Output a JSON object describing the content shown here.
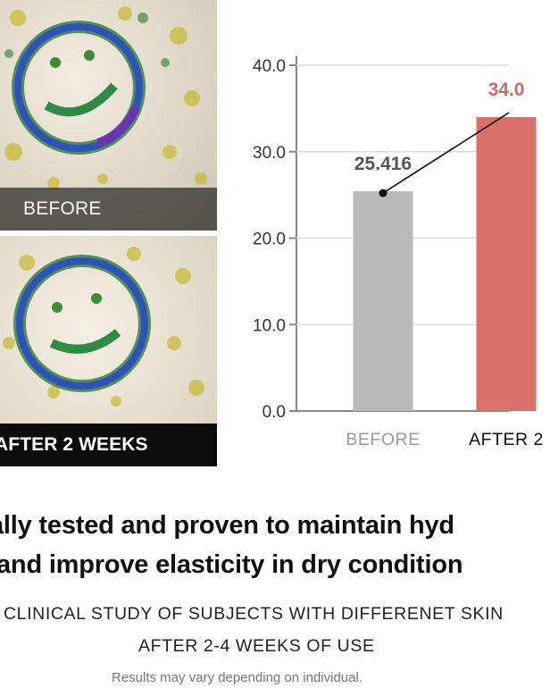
{
  "photos": {
    "before_caption": "BEFORE",
    "after_caption": "AFTER 2 WEEKS"
  },
  "chart_data": {
    "type": "bar",
    "categories": [
      "BEFORE",
      "AFTER 2"
    ],
    "values": [
      25.416,
      34.0
    ],
    "data_labels": [
      "25.416",
      "34.0"
    ],
    "ylim": [
      0,
      40
    ],
    "yticks": [
      "0.0",
      "10.0",
      "20.0",
      "30.0",
      "40.0"
    ],
    "grid": true,
    "colors": {
      "before": "#b9b9b9",
      "after": "#d9716a",
      "before_label": "#555555",
      "after_label": "#c96a63"
    },
    "annotation": "arrow connecting the top of the BEFORE bar toward the AFTER bar"
  },
  "text": {
    "headline_1": "ally tested and proven to maintain hyd",
    "headline_2": "and improve elasticity in dry condition",
    "study_line": "CLINICAL STUDY OF SUBJECTS WITH DIFFERENET SKIN",
    "weeks_line": "AFTER 2-4 WEEKS OF USE",
    "disclaimer": "Results may vary depending on individual."
  }
}
